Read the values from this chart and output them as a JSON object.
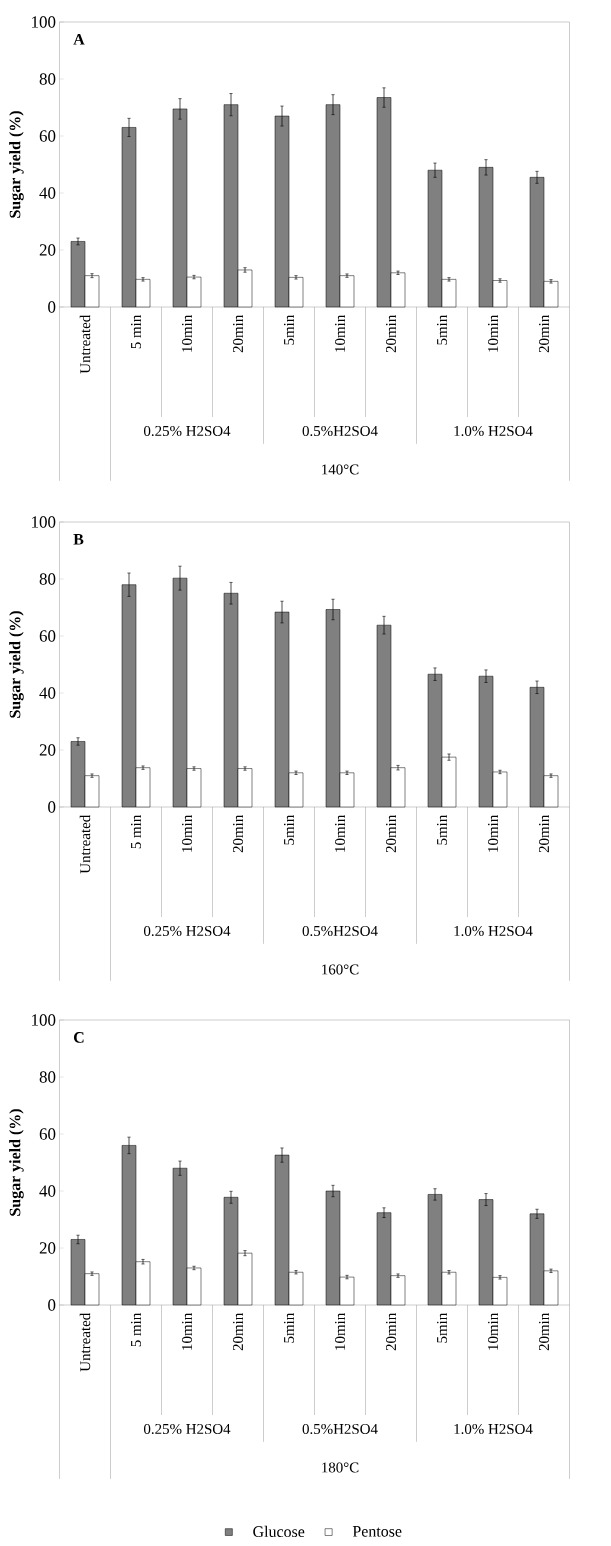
{
  "chart_data": [
    {
      "type": "bar",
      "title": "A",
      "ylabel": "Sugar yield (%)",
      "categories": [
        "Untreated",
        "5 min",
        "10min",
        "20min",
        "5min",
        "10min",
        "20min",
        "5min",
        "10min",
        "20min"
      ],
      "series": [
        {
          "color": "#808080",
          "values": [
            23,
            63,
            69.5,
            71,
            67,
            71,
            73.5,
            48,
            49,
            45.5
          ],
          "errors": [
            1.2,
            3.2,
            3.6,
            3.9,
            3.5,
            3.5,
            3.4,
            2.5,
            2.7,
            2.1
          ]
        },
        {
          "color": "#ffffff",
          "values": [
            11,
            9.7,
            10.5,
            13,
            10.4,
            11,
            12,
            9.7,
            9.3,
            9
          ],
          "errors": [
            0.7,
            0.6,
            0.6,
            0.8,
            0.6,
            0.6,
            0.6,
            0.6,
            0.6,
            0.6
          ]
        }
      ],
      "ylim": [
        0,
        100
      ],
      "yticks": [
        0,
        20,
        40,
        60,
        80,
        100
      ],
      "annotations": [
        "0.25% H2SO4",
        "0.5%H2SO4",
        "1.0% H2SO4",
        "140°C"
      ]
    },
    {
      "type": "bar",
      "title": "B",
      "ylabel": "Sugar yield (%)",
      "categories": [
        "Untreated",
        "5 min",
        "10min",
        "20min",
        "5min",
        "10min",
        "20min",
        "5min",
        "10min",
        "20min"
      ],
      "series": [
        {
          "color": "#808080",
          "values": [
            23,
            78,
            80.3,
            75,
            68.4,
            69.3,
            63.8,
            46.6,
            45.9,
            42
          ],
          "errors": [
            1.3,
            4.1,
            4.2,
            3.8,
            3.8,
            3.6,
            3.1,
            2.2,
            2.2,
            2.2
          ]
        },
        {
          "color": "#ffffff",
          "values": [
            11,
            13.8,
            13.5,
            13.5,
            12,
            12,
            13.8,
            17.5,
            12.3,
            11
          ],
          "errors": [
            0.6,
            0.6,
            0.6,
            0.6,
            0.6,
            0.6,
            0.8,
            1.1,
            0.6,
            0.6
          ]
        }
      ],
      "ylim": [
        0,
        100
      ],
      "yticks": [
        0,
        20,
        40,
        60,
        80,
        100
      ],
      "annotations": [
        "0.25% H2SO4",
        "0.5%H2SO4",
        "1.0% H2SO4",
        "160°C"
      ]
    },
    {
      "type": "bar",
      "title": "C",
      "ylabel": "Sugar yield (%)",
      "categories": [
        "Untreated",
        "5 min",
        "10min",
        "20min",
        "5min",
        "10min",
        "20min",
        "5min",
        "10min",
        "20min"
      ],
      "series": [
        {
          "name": "Glucose",
          "color": "#808080",
          "values": [
            23,
            56,
            48,
            37.8,
            52.6,
            40,
            32.4,
            38.8,
            37,
            32
          ],
          "errors": [
            1.5,
            2.9,
            2.5,
            2.1,
            2.5,
            2,
            1.7,
            2,
            2.1,
            1.6
          ]
        },
        {
          "name": "Pentose",
          "color": "#ffffff",
          "values": [
            11,
            15.2,
            13,
            18.2,
            11.5,
            9.8,
            10.3,
            11.5,
            9.7,
            12
          ],
          "errors": [
            0.6,
            0.8,
            0.6,
            0.9,
            0.6,
            0.6,
            0.6,
            0.6,
            0.6,
            0.6
          ]
        }
      ],
      "ylim": [
        0,
        100
      ],
      "yticks": [
        0,
        20,
        40,
        60,
        80,
        100
      ],
      "annotations": [
        "0.25% H2SO4",
        "0.5%H2SO4",
        "1.0% H2SO4",
        "180°C"
      ],
      "legend": "bottom"
    }
  ]
}
